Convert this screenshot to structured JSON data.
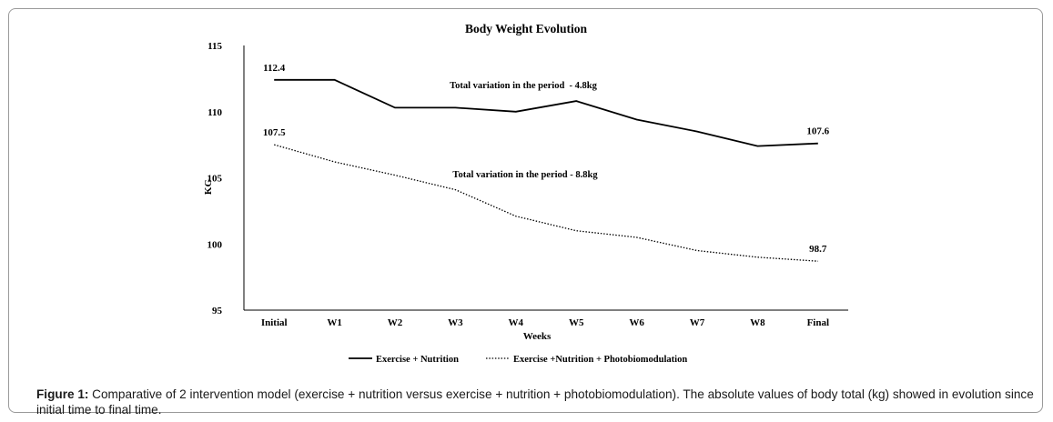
{
  "chart_data": {
    "type": "line",
    "title": "Body Weight Evolution",
    "xlabel": "Weeks",
    "ylabel": "KG",
    "categories": [
      "Initial",
      "W1",
      "W2",
      "W3",
      "W4",
      "W5",
      "W6",
      "W7",
      "W8",
      "Final"
    ],
    "ylim": [
      95,
      115
    ],
    "yticks": [
      95,
      100,
      105,
      110,
      115
    ],
    "grid": false,
    "legend_position": "bottom",
    "series": [
      {
        "name": "Exercise + Nutrition",
        "style": "solid",
        "color": "#000000",
        "values": [
          112.4,
          112.4,
          110.3,
          110.3,
          110.0,
          110.8,
          109.4,
          108.5,
          107.4,
          107.6
        ]
      },
      {
        "name": "Exercise +Nutrition + Photobiomodulation",
        "style": "dotted",
        "color": "#000000",
        "values": [
          107.5,
          106.2,
          105.2,
          104.1,
          102.1,
          101.0,
          100.5,
          99.5,
          99.0,
          98.7
        ]
      }
    ],
    "data_labels": [
      {
        "series": 0,
        "index": 0,
        "text": "112.4"
      },
      {
        "series": 0,
        "index": 9,
        "text": "107.6"
      },
      {
        "series": 1,
        "index": 0,
        "text": "107.5"
      },
      {
        "series": 1,
        "index": 9,
        "text": "98.7"
      }
    ],
    "annotations": [
      "Total variation in the period  - 4.8kg",
      "Total variation in the period - 8.8kg"
    ]
  },
  "caption": {
    "label": "Figure 1:",
    "text": " Comparative of 2 intervention model (exercise + nutrition versus exercise + nutrition + photobiomodulation). The absolute values of body total (kg) showed in evolution since initial time to final time."
  }
}
